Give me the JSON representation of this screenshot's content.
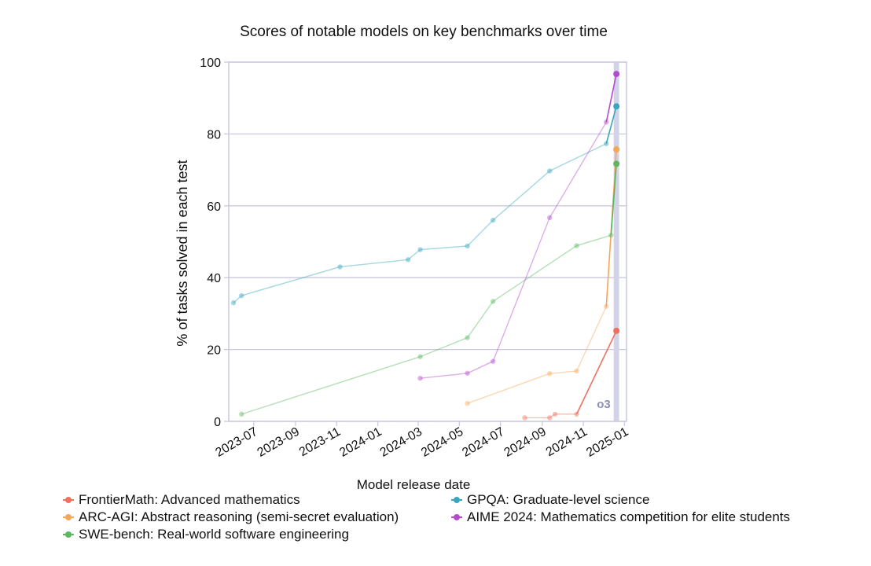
{
  "chart_data": {
    "type": "line",
    "title": "Scores of notable models on key benchmarks over time",
    "xlabel": "Model release date",
    "ylabel": "% of tasks solved in each test",
    "xlim": [
      "2023-05-25",
      "2025-01-04"
    ],
    "ylim": [
      0,
      100
    ],
    "x_ticks": [
      "2023-07",
      "2023-09",
      "2023-11",
      "2024-01",
      "2024-03",
      "2024-05",
      "2024-07",
      "2024-09",
      "2024-11",
      "2025-01"
    ],
    "y_ticks": [
      0,
      20,
      40,
      60,
      80,
      100
    ],
    "grid": {
      "horizontal": true,
      "vertical": false
    },
    "highlight": {
      "label": "o3",
      "start": "2024-12-16",
      "end": "2024-12-24",
      "color": "#d3d3e8",
      "label_color": "#8e8eb8"
    },
    "legend_position": "bottom",
    "series": [
      {
        "name": "FrontierMath: Advanced mathematics",
        "color": "#f07060",
        "points": [
          [
            "2024-08-06",
            1
          ],
          [
            "2024-09-12",
            1
          ],
          [
            "2024-09-20",
            2
          ],
          [
            "2024-10-22",
            2
          ],
          [
            "2024-12-20",
            25.2
          ]
        ]
      },
      {
        "name": "ARC-AGI: Abstract reasoning (semi-secret evaluation)",
        "color": "#f7a654",
        "points": [
          [
            "2024-05-13",
            5
          ],
          [
            "2024-09-12",
            13.3
          ],
          [
            "2024-10-22",
            14
          ],
          [
            "2024-12-05",
            32
          ],
          [
            "2024-12-20",
            75.7
          ]
        ]
      },
      {
        "name": "SWE-bench: Real-world software engineering",
        "color": "#5bb85d",
        "points": [
          [
            "2023-06-13",
            2
          ],
          [
            "2024-03-04",
            18
          ],
          [
            "2024-05-13",
            23.3
          ],
          [
            "2024-06-20",
            33.4
          ],
          [
            "2024-10-22",
            48.9
          ],
          [
            "2024-12-12",
            51.8
          ],
          [
            "2024-12-20",
            71.7
          ]
        ]
      },
      {
        "name": "GPQA: Graduate-level science",
        "color": "#37a7bd",
        "points": [
          [
            "2023-06-01",
            33
          ],
          [
            "2023-06-13",
            35
          ],
          [
            "2023-11-06",
            43
          ],
          [
            "2024-02-15",
            45
          ],
          [
            "2024-03-04",
            47.8
          ],
          [
            "2024-05-13",
            48.8
          ],
          [
            "2024-06-20",
            56
          ],
          [
            "2024-09-12",
            69.7
          ],
          [
            "2024-12-05",
            77.3
          ],
          [
            "2024-12-20",
            87.7
          ]
        ]
      },
      {
        "name": "AIME 2024: Mathematics competition for elite students",
        "color": "#b44bcd",
        "points": [
          [
            "2024-03-04",
            12
          ],
          [
            "2024-05-13",
            13.4
          ],
          [
            "2024-06-20",
            16.7
          ],
          [
            "2024-09-12",
            56.7
          ],
          [
            "2024-12-05",
            83.3
          ],
          [
            "2024-12-20",
            96.7
          ]
        ]
      }
    ]
  }
}
